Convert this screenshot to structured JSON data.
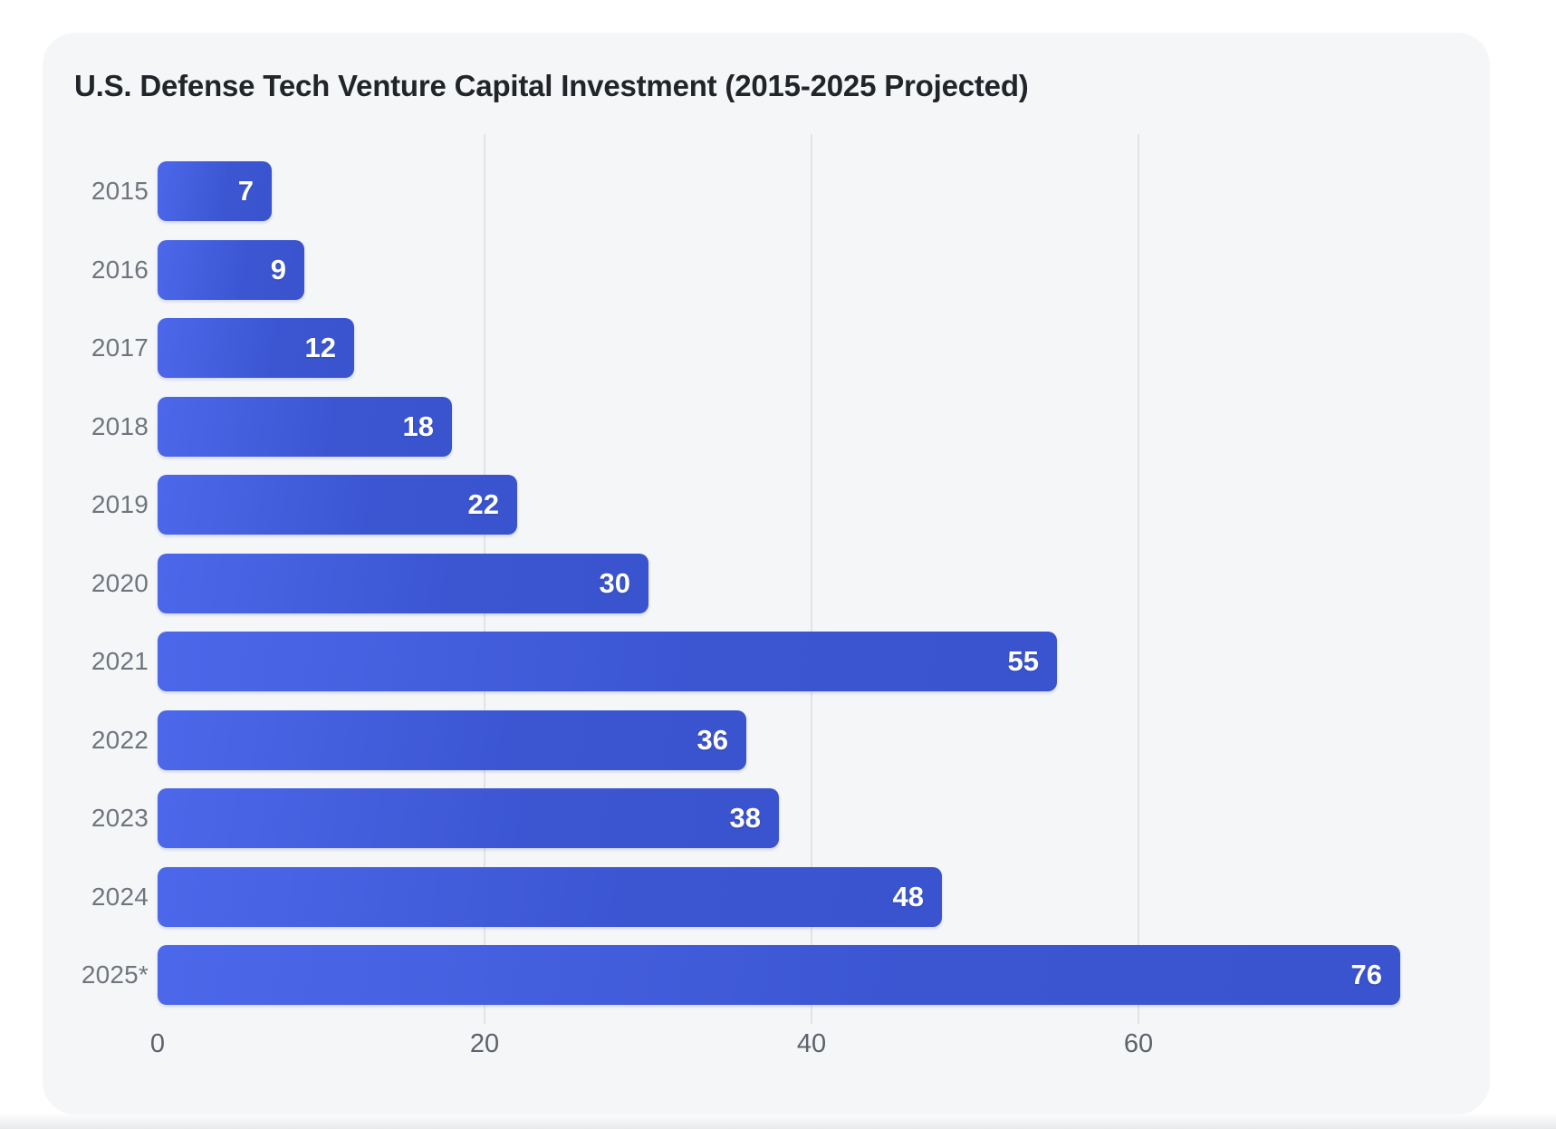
{
  "title": "U.S. Defense Tech Venture Capital Investment (2015-2025 Projected)",
  "chart_data": {
    "type": "bar",
    "orientation": "horizontal",
    "title": "U.S. Defense Tech Venture Capital Investment (2015-2025 Projected)",
    "categories": [
      "2015",
      "2016",
      "2017",
      "2018",
      "2019",
      "2020",
      "2021",
      "2022",
      "2023",
      "2024",
      "2025*"
    ],
    "values": [
      7,
      9,
      12,
      18,
      22,
      30,
      55,
      36,
      38,
      48,
      76
    ],
    "x_ticks": [
      0,
      20,
      40,
      60
    ],
    "xlim": [
      0,
      80
    ],
    "xlabel": "",
    "ylabel": "",
    "grid": "vertical-only",
    "value_labels_position": "inside-end",
    "legend": "none"
  },
  "colors": {
    "card_background": "#f5f6f8",
    "page_background": "#ffffff",
    "bar_gradient_start": "#4c68ea",
    "bar_gradient_end": "#3a53ce",
    "value_label": "#ffffff",
    "category_label": "#70757d",
    "tick_label": "#5d626a",
    "gridline": "#e1e3e7",
    "title": "#212529"
  }
}
